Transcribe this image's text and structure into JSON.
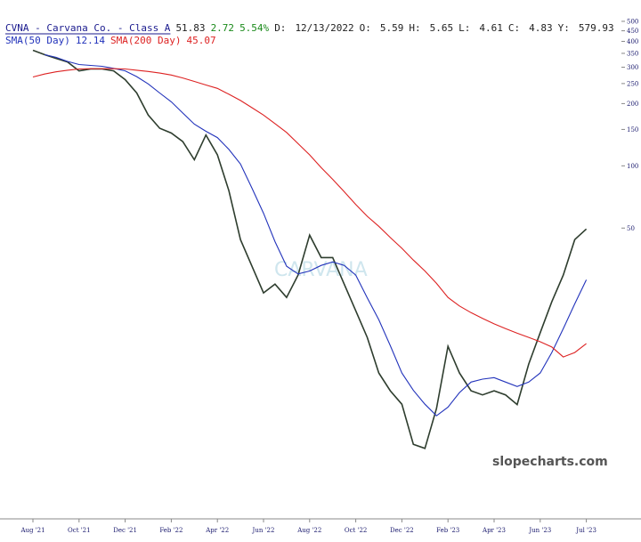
{
  "chart_data": {
    "type": "line",
    "log_scale": true,
    "title": "CVNA - Carvana Co. - Class A",
    "quote": {
      "last": 51.83,
      "change": 2.72,
      "change_pct": {
        "value": 5.54,
        "label": "5.54%"
      },
      "date_label": "D:",
      "date": "12/13/2022",
      "fields": [
        {
          "label": "O:",
          "value": 5.59
        },
        {
          "label": "H:",
          "value": 5.65
        },
        {
          "label": "L:",
          "value": 4.61
        },
        {
          "label": "C:",
          "value": 4.83
        },
        {
          "label": "Y:",
          "value": 579.93
        }
      ]
    },
    "watermark": "slopecharts.com",
    "logo_text": "CARVANA",
    "x": [
      "Aug '21",
      null,
      null,
      null,
      "Oct '21",
      null,
      null,
      null,
      "Dec '21",
      null,
      null,
      null,
      "Feb '22",
      null,
      null,
      null,
      "Apr '22",
      null,
      null,
      null,
      "Jun '22",
      null,
      null,
      null,
      "Aug '22",
      null,
      null,
      null,
      "Oct '22",
      null,
      null,
      null,
      "Dec '22",
      null,
      null,
      null,
      "Feb '23",
      null,
      null,
      null,
      "Apr '23",
      null,
      null,
      null,
      "Jun '23",
      null,
      null,
      null,
      "Jul '23"
    ],
    "series": [
      {
        "color": "#2e3d2e",
        "values": [
          362,
          345,
          331,
          318,
          288,
          294,
          294,
          288,
          261,
          225,
          176,
          152,
          144,
          131,
          107,
          141,
          113,
          75.8,
          44,
          32.7,
          24.3,
          26.8,
          23.1,
          29.6,
          46.2,
          36,
          36,
          26.8,
          19.9,
          14.8,
          9.95,
          8.16,
          7.03,
          4.5,
          4.3,
          6.7,
          13.4,
          9.95,
          8.16,
          7.8,
          8.16,
          7.8,
          7.0,
          11,
          15.6,
          22,
          29.6,
          44,
          49.5
        ]
      },
      {
        "name": "SMA(50 Day)",
        "last": 12.14,
        "color": "#2233bb",
        "values": [
          null,
          345,
          335,
          320,
          309,
          306,
          303,
          296,
          288,
          270,
          249,
          225,
          204,
          180,
          159,
          147,
          137,
          120,
          102,
          78,
          59,
          43,
          32.7,
          30,
          31,
          33,
          34.3,
          33,
          29.6,
          23,
          18,
          13.5,
          9.95,
          8.2,
          7.03,
          6.18,
          6.8,
          8,
          9.0,
          9.3,
          9.45,
          9.0,
          8.56,
          9.0,
          9.95,
          12.5,
          16.3,
          21.5,
          28.1
        ]
      },
      {
        "name": "SMA(200 Day)",
        "last": 45.07,
        "color": "#dd2222",
        "values": [
          269,
          278,
          285,
          290,
          294,
          295,
          295,
          295,
          294,
          290,
          286,
          281,
          275,
          266,
          256,
          246,
          237,
          222,
          207,
          191,
          176,
          160,
          145,
          128,
          113,
          98,
          86,
          75,
          65,
          57,
          51,
          45,
          39.9,
          35,
          31,
          27,
          23.1,
          21,
          19.5,
          18.3,
          17.2,
          16.3,
          15.5,
          14.8,
          14.1,
          13.3,
          11.9,
          12.5,
          13.8
        ]
      }
    ],
    "ylim": [
      2,
      520
    ],
    "yticks": [
      500,
      450,
      400,
      350,
      300,
      250,
      200,
      150,
      100,
      50
    ]
  }
}
